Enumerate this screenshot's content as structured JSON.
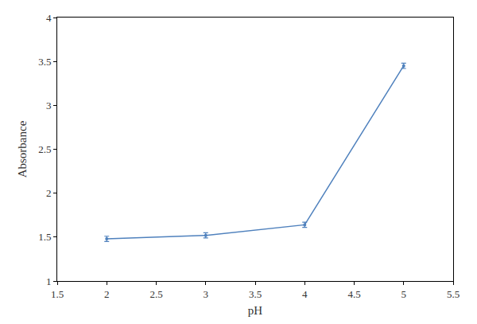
{
  "chart_data": {
    "type": "line",
    "x_label": "pH",
    "y_label": "Absorbance",
    "x": [
      2,
      3,
      4,
      5
    ],
    "values": [
      1.48,
      1.52,
      1.64,
      3.45
    ],
    "errors": [
      0.03,
      0.03,
      0.03,
      0.03
    ],
    "color": "#4f81bd",
    "marker": "circle",
    "line_style": "solid",
    "xlim": [
      1.5,
      5.5
    ],
    "xticks": [
      1.5,
      2,
      2.5,
      3,
      3.5,
      4,
      4.5,
      5,
      5.5
    ],
    "ylim": [
      1,
      4
    ],
    "yticks": [
      1,
      1.5,
      2,
      2.5,
      3,
      3.5,
      4
    ],
    "grid": false
  }
}
